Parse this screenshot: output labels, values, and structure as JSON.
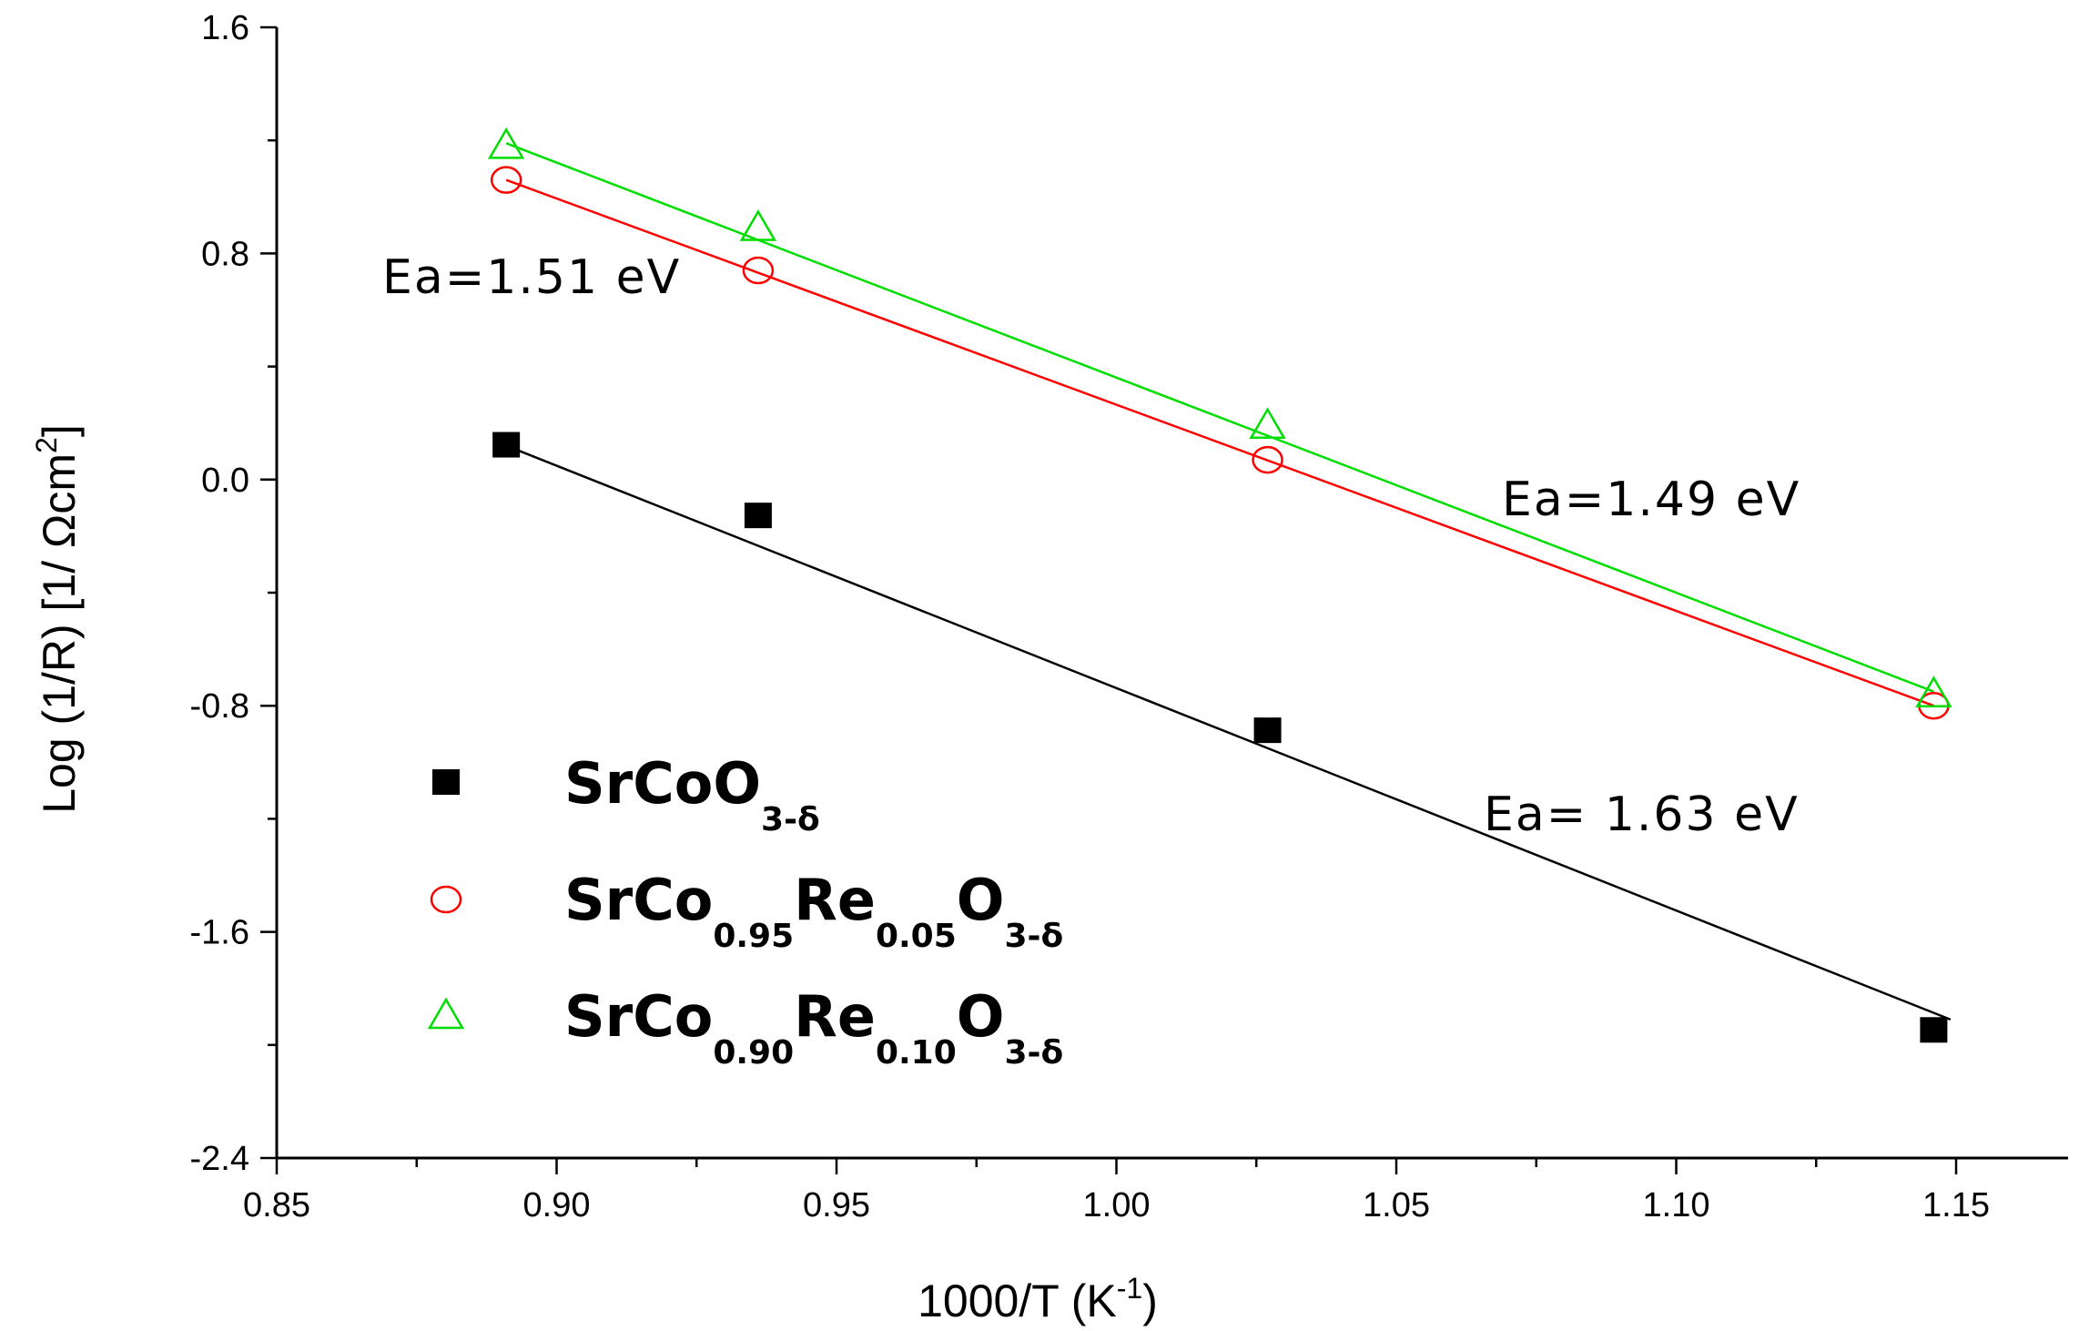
{
  "chart_data": {
    "type": "scatter",
    "title": "",
    "xlabel": "1000/T (K",
    "xlabel_sup": "-1",
    "xlabel_end": ")",
    "ylabel": "Log (1/R) [1/ Ωcm",
    "ylabel_sup": "2",
    "ylabel_end": "]",
    "xlim": [
      0.85,
      1.17
    ],
    "ylim": [
      -2.4,
      1.6
    ],
    "xticks": [
      0.85,
      0.9,
      0.95,
      1.0,
      1.05,
      1.1,
      1.15
    ],
    "xtick_labels": [
      "0.85",
      "0.90",
      "0.95",
      "1.00",
      "1.05",
      "1.10",
      "1.15"
    ],
    "yticks": [
      -2.4,
      -1.6,
      -0.8,
      0.0,
      0.8,
      1.6
    ],
    "ytick_labels": [
      "-2.4",
      "-1.6",
      "-0.8",
      "0.0",
      "0.8",
      "1.6"
    ],
    "series": [
      {
        "name": "SrCoO3-δ",
        "marker": "square",
        "color": "#000000",
        "x": [
          0.891,
          0.936,
          1.027,
          1.146
        ],
        "y": [
          0.12,
          -0.13,
          -0.89,
          -1.95
        ],
        "fit": {
          "x": [
            0.891,
            1.149
          ],
          "y": [
            0.12,
            -1.91
          ]
        }
      },
      {
        "name": "SrCo0.95Re0.05O3-δ",
        "marker": "circle",
        "color": "#ff0000",
        "x": [
          0.891,
          0.936,
          1.027,
          1.146
        ],
        "y": [
          1.06,
          0.74,
          0.07,
          -0.8
        ],
        "fit": {
          "x": [
            0.891,
            1.146
          ],
          "y": [
            1.06,
            -0.8
          ]
        }
      },
      {
        "name": "SrCo0.90Re0.10O3-δ",
        "marker": "triangle",
        "color": "#00dd00",
        "x": [
          0.891,
          0.936,
          1.027,
          1.146
        ],
        "y": [
          1.18,
          0.89,
          0.19,
          -0.76
        ],
        "fit": {
          "x": [
            0.891,
            1.146
          ],
          "y": [
            1.19,
            -0.75
          ]
        }
      }
    ],
    "annotations": [
      {
        "text": "Ea=1.51 eV"
      },
      {
        "text": "Ea=1.49 eV"
      },
      {
        "text": "Ea= 1.63 eV"
      }
    ],
    "legend": [
      {
        "base": "SrCoO",
        "sub": "3-δ"
      },
      {
        "parts": [
          [
            "SrCo",
            ""
          ],
          [
            "0.95",
            "sub"
          ],
          [
            "Re",
            ""
          ],
          [
            "0.05",
            "sub"
          ],
          [
            "O",
            ""
          ],
          [
            "3-δ",
            "sub"
          ]
        ]
      },
      {
        "parts": [
          [
            "SrCo",
            ""
          ],
          [
            "0.90",
            "sub"
          ],
          [
            "Re",
            ""
          ],
          [
            "0.10",
            "sub"
          ],
          [
            "O",
            ""
          ],
          [
            "3-δ",
            "sub"
          ]
        ]
      }
    ]
  }
}
